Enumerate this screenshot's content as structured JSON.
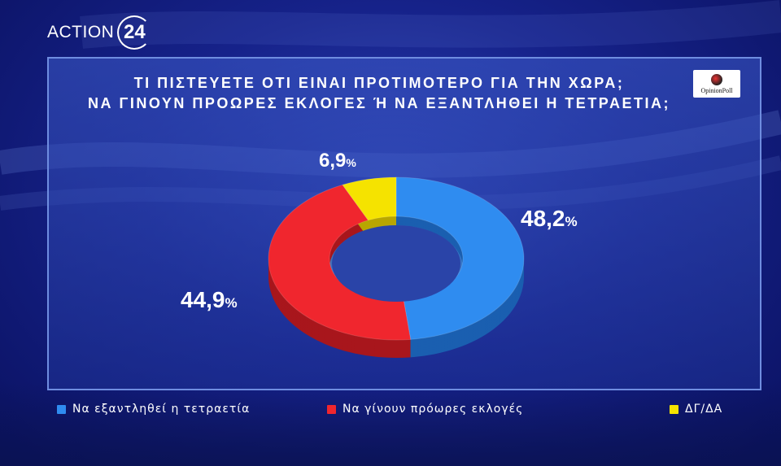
{
  "brand": {
    "text": "ACTION",
    "number": "24"
  },
  "title": {
    "line1": "ΤΙ ΠΙΣΤΕΥΕΤΕ ΟΤΙ ΕΙΝΑΙ ΠΡΟΤΙΜΟΤΕΡΟ ΓΙΑ ΤΗΝ ΧΩΡΑ;",
    "line2": "ΝΑ ΓΙΝΟΥΝ ΠΡΟΩΡΕΣ ΕΚΛΟΓΕΣ Ή ΝΑ ΕΞΑΝΤΛΗΘΕΙ Η ΤΕΤΡΑΕΤΙΑ;"
  },
  "pollster": "OpinionPoll",
  "chart_data": {
    "type": "pie",
    "categories": [
      "Να εξαντληθεί η τετραετία",
      "Να γίνουν πρόωρες εκλογές",
      "ΔΓ/ΔΑ"
    ],
    "values": [
      48.2,
      44.9,
      6.9
    ],
    "value_labels": [
      "48,2",
      "44,9",
      "6,9"
    ],
    "unit": "%",
    "colors": [
      "#2f8cf0",
      "#f0262e",
      "#f5e300"
    ],
    "legend_position": "bottom"
  }
}
